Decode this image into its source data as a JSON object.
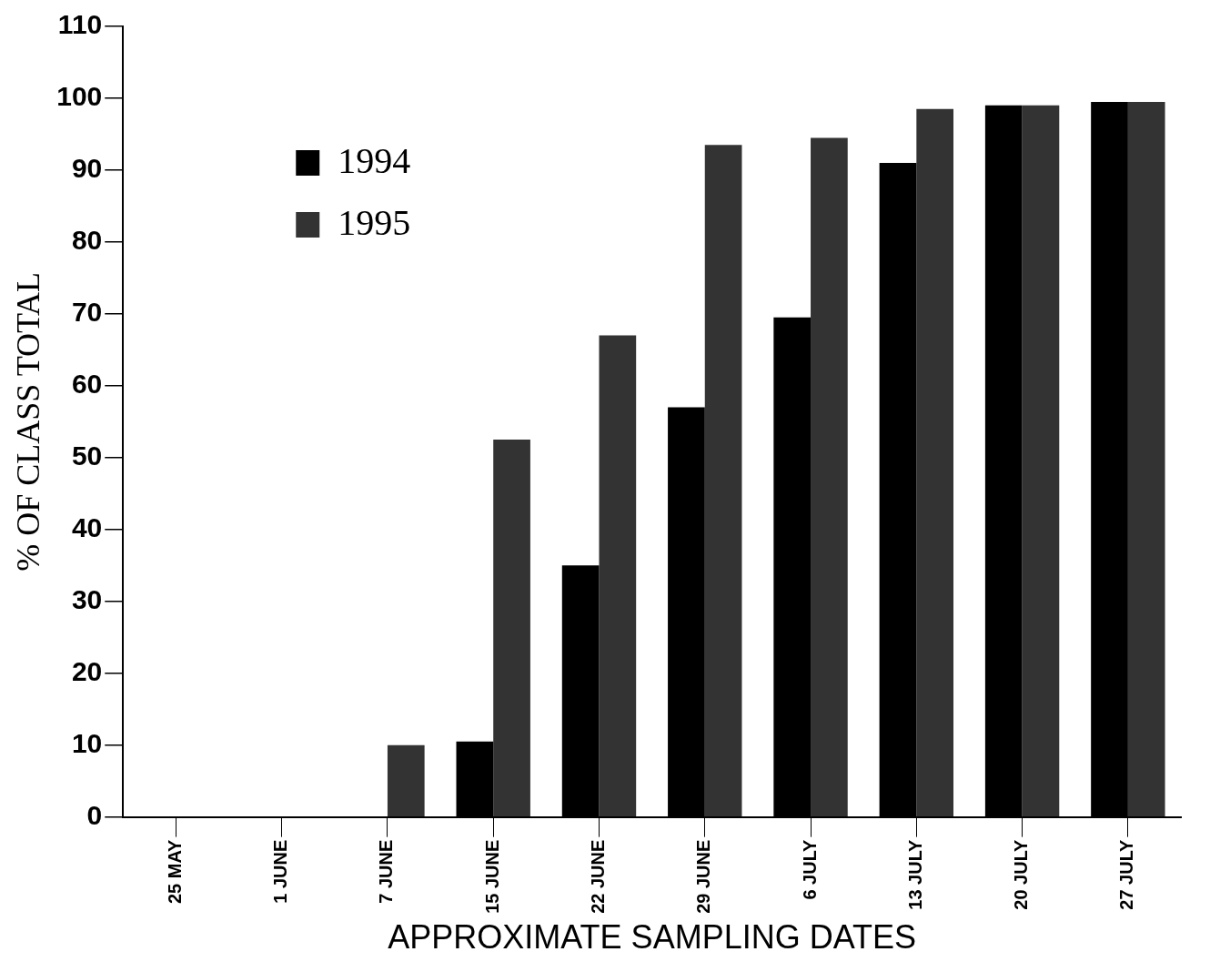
{
  "chart_data": {
    "type": "bar",
    "xlabel": "APPROXIMATE SAMPLING DATES",
    "ylabel": "% OF CLASS TOTAL",
    "categories": [
      "25 MAY",
      "1 JUNE",
      "7 JUNE",
      "15 JUNE",
      "22 JUNE",
      "29 JUNE",
      "6 JULY",
      "13 JULY",
      "20 JULY",
      "27 JULY"
    ],
    "series": [
      {
        "name": "1994",
        "color": "#000000",
        "values": [
          0,
          0,
          0,
          10.5,
          35,
          57,
          69.5,
          91,
          99,
          99.5
        ]
      },
      {
        "name": "1995",
        "color": "#333333",
        "values": [
          0,
          0,
          10,
          52.5,
          67,
          93.5,
          94.5,
          98.5,
          99,
          99.5
        ]
      }
    ],
    "ylim": [
      0,
      110
    ],
    "yticks": [
      0,
      10,
      20,
      30,
      40,
      50,
      60,
      70,
      80,
      90,
      100,
      110
    ],
    "grid": false,
    "legend": "top left"
  }
}
